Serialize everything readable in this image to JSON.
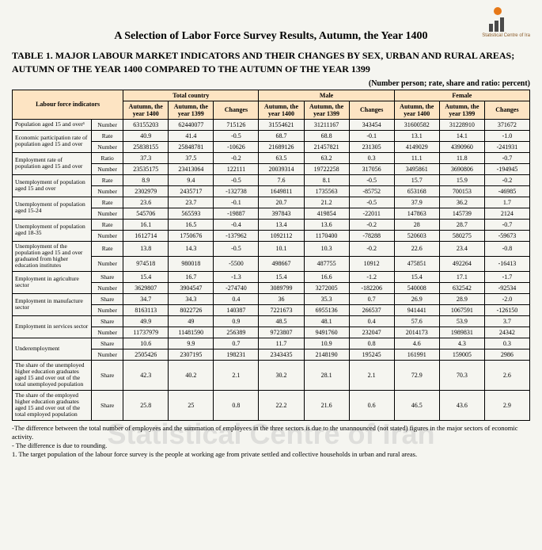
{
  "logo_text": "Statistical Centre of Ira",
  "title": "A Selection of Labor Force Survey Results, Autumn, the Year 1400",
  "subtitle": "TABLE 1. MAJOR LABOUR MARKET INDICATORS AND THEIR CHANGES BY SEX, URBAN AND RURAL AREAS; AUTUMN OF THE YEAR 1400 COMPARED TO THE AUTUMN OF THE YEAR 1399",
  "unit_note": "(Number person; rate, share and ratio: percent)",
  "header": {
    "indicators": "Labour force indicators",
    "groups": [
      "Total country",
      "Male",
      "Female"
    ],
    "cols": [
      "Autumn, the year 1400",
      "Autumn, the year 1399",
      "Changes"
    ]
  },
  "rows": [
    {
      "label": "Population aged 15 and over¹",
      "type": "Number",
      "v": [
        "63155203",
        "62440077",
        "715126",
        "31554621",
        "31211167",
        "343454",
        "31600582",
        "31228910",
        "371672"
      ]
    },
    {
      "label": "Economic participation rate of population aged 15 and over",
      "type": "Rate",
      "v": [
        "40.9",
        "41.4",
        "-0.5",
        "68.7",
        "68.8",
        "-0.1",
        "13.1",
        "14.1",
        "-1.0"
      ]
    },
    {
      "label": "",
      "type": "Number",
      "v": [
        "25838155",
        "25848781",
        "-10626",
        "21689126",
        "21457821",
        "231305",
        "4149029",
        "4390960",
        "-241931"
      ]
    },
    {
      "label": "Employment rate of population aged 15 and over",
      "type": "Ratio",
      "v": [
        "37.3",
        "37.5",
        "-0.2",
        "63.5",
        "63.2",
        "0.3",
        "11.1",
        "11.8",
        "-0.7"
      ]
    },
    {
      "label": "",
      "type": "Number",
      "v": [
        "23535175",
        "23413064",
        "122111",
        "20039314",
        "19722258",
        "317056",
        "3495861",
        "3690806",
        "-194945"
      ]
    },
    {
      "label": "Unemployment of population aged 15 and over",
      "type": "Rate",
      "v": [
        "8.9",
        "9.4",
        "-0.5",
        "7.6",
        "8.1",
        "-0.5",
        "15.7",
        "15.9",
        "-0.2"
      ]
    },
    {
      "label": "",
      "type": "Number",
      "v": [
        "2302979",
        "2435717",
        "-132738",
        "1649811",
        "1735563",
        "-85752",
        "653168",
        "700153",
        "-46985"
      ]
    },
    {
      "label": "Unemployment of population aged 15-24",
      "type": "Rate",
      "v": [
        "23.6",
        "23.7",
        "-0.1",
        "20.7",
        "21.2",
        "-0.5",
        "37.9",
        "36.2",
        "1.7"
      ]
    },
    {
      "label": "",
      "type": "Number",
      "v": [
        "545706",
        "565593",
        "-19887",
        "397843",
        "419854",
        "-22011",
        "147863",
        "145739",
        "2124"
      ]
    },
    {
      "label": "Unemployment of population aged 18-35",
      "type": "Rate",
      "v": [
        "16.1",
        "16.5",
        "-0.4",
        "13.4",
        "13.6",
        "-0.2",
        "28",
        "28.7",
        "-0.7"
      ]
    },
    {
      "label": "",
      "type": "Number",
      "v": [
        "1612714",
        "1750676",
        "-137962",
        "1092112",
        "1170400",
        "-78288",
        "520603",
        "580275",
        "-59673"
      ]
    },
    {
      "label": "Unemployment of the population aged 15 and over graduated from higher education institutes",
      "type": "Rate",
      "v": [
        "13.8",
        "14.3",
        "-0.5",
        "10.1",
        "10.3",
        "-0.2",
        "22.6",
        "23.4",
        "-0.8"
      ]
    },
    {
      "label": "",
      "type": "Number",
      "v": [
        "974518",
        "980018",
        "-5500",
        "498667",
        "487755",
        "10912",
        "475851",
        "492264",
        "-16413"
      ]
    },
    {
      "label": "Employment in agriculture sector",
      "type": "Share",
      "v": [
        "15.4",
        "16.7",
        "-1.3",
        "15.4",
        "16.6",
        "-1.2",
        "15.4",
        "17.1",
        "-1.7"
      ]
    },
    {
      "label": "",
      "type": "Number",
      "v": [
        "3629807",
        "3904547",
        "-274740",
        "3089799",
        "3272005",
        "-182206",
        "540008",
        "632542",
        "-92534"
      ]
    },
    {
      "label": "Employment in manufacture sector",
      "type": "Share",
      "v": [
        "34.7",
        "34.3",
        "0.4",
        "36",
        "35.3",
        "0.7",
        "26.9",
        "28.9",
        "-2.0"
      ]
    },
    {
      "label": "",
      "type": "Number",
      "v": [
        "8163113",
        "8022726",
        "140387",
        "7221673",
        "6955136",
        "266537",
        "941441",
        "1067591",
        "-126150"
      ]
    },
    {
      "label": "Employment in services sector",
      "type": "Share",
      "v": [
        "49.9",
        "49",
        "0.9",
        "48.5",
        "48.1",
        "0.4",
        "57.6",
        "53.9",
        "3.7"
      ]
    },
    {
      "label": "",
      "type": "Number",
      "v": [
        "11737979",
        "11481590",
        "256389",
        "9723807",
        "9491760",
        "232047",
        "2014173",
        "1989831",
        "24342"
      ]
    },
    {
      "label": "Underemployment",
      "type": "Share",
      "v": [
        "10.6",
        "9.9",
        "0.7",
        "11.7",
        "10.9",
        "0.8",
        "4.6",
        "4.3",
        "0.3"
      ]
    },
    {
      "label": "",
      "type": "Number",
      "v": [
        "2505426",
        "2307195",
        "198231",
        "2343435",
        "2148190",
        "195245",
        "161991",
        "159005",
        "2986"
      ]
    },
    {
      "label": "The share of the unemployed higher education graduates aged 15 and over out of the total unemployed population",
      "type": "Share",
      "v": [
        "42.3",
        "40.2",
        "2.1",
        "30.2",
        "28.1",
        "2.1",
        "72.9",
        "70.3",
        "2.6"
      ]
    },
    {
      "label": "The share of the employed higher education graduates aged 15 and over out of the total employed population",
      "type": "Share",
      "v": [
        "25.8",
        "25",
        "0.8",
        "22.2",
        "21.6",
        "0.6",
        "46.5",
        "43.6",
        "2.9"
      ]
    }
  ],
  "row_merges": [
    {
      "start": 1,
      "span": 2
    },
    {
      "start": 3,
      "span": 2
    },
    {
      "start": 5,
      "span": 2
    },
    {
      "start": 7,
      "span": 2
    },
    {
      "start": 9,
      "span": 2
    },
    {
      "start": 11,
      "span": 2
    },
    {
      "start": 13,
      "span": 2
    },
    {
      "start": 15,
      "span": 2
    },
    {
      "start": 17,
      "span": 2
    },
    {
      "start": 19,
      "span": 2
    }
  ],
  "footnotes": [
    "-The difference between the total number of employees and the summation of employees in the three sectors is due to the unannounced (not stated) figures in the major sectors of economic activity.",
    "- The difference is due to rounding.",
    "1. The target population of the labour force survey is the people at working age from private settled and collective households in urban and rural areas."
  ],
  "watermark": "Statistical Centre of Iran",
  "colors": {
    "header_bg": "#fde4c3",
    "logo_orange": "#e67817",
    "logo_brown": "#4a4a4a"
  }
}
